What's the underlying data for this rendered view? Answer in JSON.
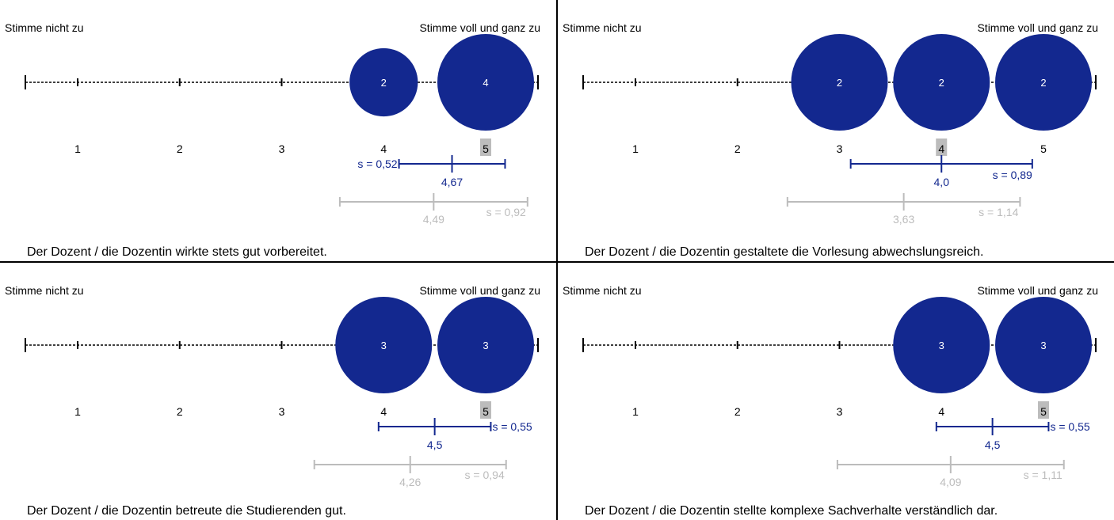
{
  "scale_labels": {
    "left": "Stimme nicht zu",
    "right": "Stimme voll und ganz zu"
  },
  "colors": {
    "bubble": "#13288f",
    "course": "#13288f",
    "reference": "#bcbcbc",
    "highlight": "#bcbcbc",
    "axis": "#000000"
  },
  "chart_data": [
    {
      "type": "bubble",
      "question": "Der Dozent / die Dozentin wirkte stets gut vorbereitet.",
      "x": [
        1,
        2,
        3,
        4,
        5
      ],
      "tick_labels": [
        "1",
        "2",
        "3",
        "4",
        "5"
      ],
      "counts": [
        0,
        0,
        0,
        2,
        4
      ],
      "highlighted_tick": 5,
      "course": {
        "mean": 4.67,
        "mean_label": "4,67",
        "sd": 0.52,
        "sd_label": "s = 0,52",
        "low": 4.15,
        "high": 5.19,
        "sd_label_side": "left"
      },
      "reference": {
        "mean": 4.49,
        "mean_label": "4,49",
        "sd": 0.92,
        "sd_label": "s = 0,92",
        "low": 3.57,
        "high": 5.41
      }
    },
    {
      "type": "bubble",
      "question": "Der Dozent / die Dozentin gestaltete die Vorlesung abwechslungsreich.",
      "x": [
        1,
        2,
        3,
        4,
        5
      ],
      "tick_labels": [
        "1",
        "2",
        "3",
        "4",
        "5"
      ],
      "counts": [
        0,
        0,
        2,
        2,
        2
      ],
      "highlighted_tick": 4,
      "course": {
        "mean": 4.0,
        "mean_label": "4,0",
        "sd": 0.89,
        "sd_label": "s = 0,89",
        "low": 3.11,
        "high": 4.89,
        "sd_label_side": "below-right"
      },
      "reference": {
        "mean": 3.63,
        "mean_label": "3,63",
        "sd": 1.14,
        "sd_label": "s = 1,14",
        "low": 2.49,
        "high": 4.77
      }
    },
    {
      "type": "bubble",
      "question": "Der Dozent / die Dozentin betreute die Studierenden gut.",
      "x": [
        1,
        2,
        3,
        4,
        5
      ],
      "tick_labels": [
        "1",
        "2",
        "3",
        "4",
        "5"
      ],
      "counts": [
        0,
        0,
        0,
        3,
        3
      ],
      "highlighted_tick": 5,
      "course": {
        "mean": 4.5,
        "mean_label": "4,5",
        "sd": 0.55,
        "sd_label": "s = 0,55",
        "low": 3.95,
        "high": 5.05,
        "sd_label_side": "right"
      },
      "reference": {
        "mean": 4.26,
        "mean_label": "4,26",
        "sd": 0.94,
        "sd_label": "s = 0,94",
        "low": 3.32,
        "high": 5.2
      }
    },
    {
      "type": "bubble",
      "question": "Der Dozent / die Dozentin stellte komplexe Sachverhalte verständlich dar.",
      "x": [
        1,
        2,
        3,
        4,
        5
      ],
      "tick_labels": [
        "1",
        "2",
        "3",
        "4",
        "5"
      ],
      "counts": [
        0,
        0,
        0,
        3,
        3
      ],
      "highlighted_tick": 5,
      "course": {
        "mean": 4.5,
        "mean_label": "4,5",
        "sd": 0.55,
        "sd_label": "s = 0,55",
        "low": 3.95,
        "high": 5.05,
        "sd_label_side": "right"
      },
      "reference": {
        "mean": 4.09,
        "mean_label": "4,09",
        "sd": 1.11,
        "sd_label": "s = 1,11",
        "low": 2.98,
        "high": 5.2
      }
    }
  ]
}
